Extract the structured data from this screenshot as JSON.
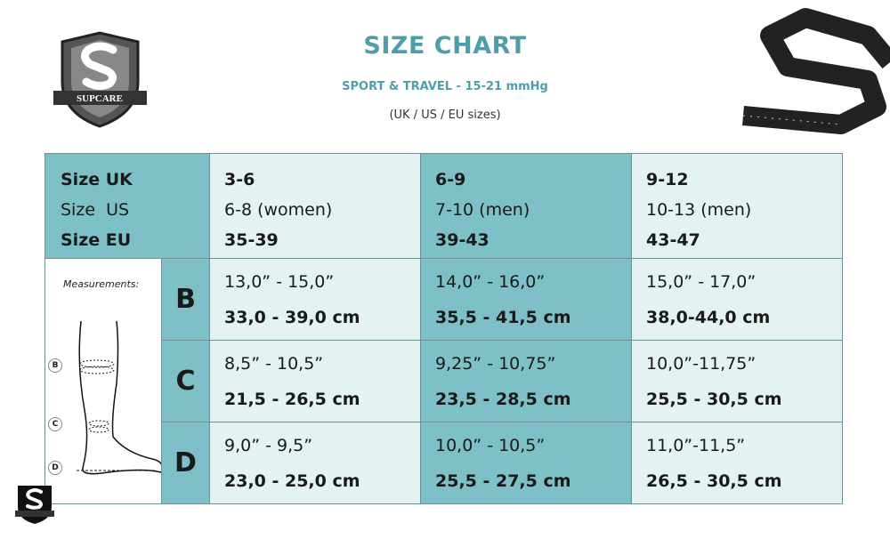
{
  "header": {
    "title": "SIZE CHART",
    "subtitle": "SPORT & TRAVEL - 15-21 mmHg",
    "note": "(UK / US / EU sizes)",
    "brand": "SUPCARE"
  },
  "colors": {
    "accent": "#4c9faa",
    "teal": "#7dc0c7",
    "light": "#e4f2f2"
  },
  "table": {
    "row_labels": [
      "Size UK",
      "Size  US",
      "Size EU"
    ],
    "sizes": [
      {
        "uk": "3-6",
        "us": "6-8 (women)",
        "eu": "35-39"
      },
      {
        "uk": "6-9",
        "us": "7-10 (men)",
        "eu": "39-43"
      },
      {
        "uk": "9-12",
        "us": "10-13 (men)",
        "eu": "43-47"
      }
    ],
    "measurements_label": "Measurements:",
    "diagram_labels": [
      "B",
      "C",
      "D"
    ],
    "rows": [
      {
        "letter": "B",
        "values": [
          {
            "in": "13,0” - 15,0”",
            "cm": "33,0 - 39,0 cm"
          },
          {
            "in": "14,0” - 16,0”",
            "cm": "35,5 - 41,5 cm"
          },
          {
            "in": "15,0” - 17,0”",
            "cm": "38,0-44,0 cm"
          }
        ]
      },
      {
        "letter": "C",
        "values": [
          {
            "in": "8,5” - 10,5”",
            "cm": "21,5 - 26,5 cm"
          },
          {
            "in": "9,25” - 10,75”",
            "cm": "23,5 - 28,5 cm"
          },
          {
            "in": "10,0”-11,75”",
            "cm": "25,5 - 30,5 cm"
          }
        ]
      },
      {
        "letter": "D",
        "values": [
          {
            "in": "9,0” - 9,5”",
            "cm": "23,0 - 25,0 cm"
          },
          {
            "in": "10,0” - 10,5”",
            "cm": "25,5 - 27,5 cm"
          },
          {
            "in": "11,0”-11,5”",
            "cm": "26,5 - 30,5 cm"
          }
        ]
      }
    ]
  }
}
